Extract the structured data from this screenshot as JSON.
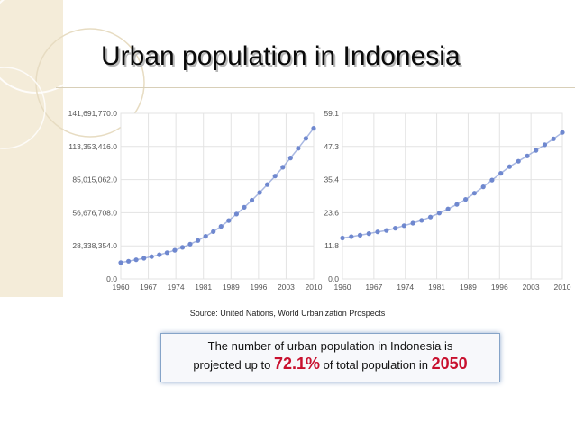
{
  "title": "Urban population in Indonesia",
  "source": "Source: United Nations, World Urbanization Prospects",
  "note": {
    "line1": "The number of urban population in Indonesia is",
    "line2_before": "projected up to",
    "percent": "72.1%",
    "line2_middle": "of total population in",
    "year": "2050",
    "accent_color": "#c8102e"
  },
  "colors": {
    "series": "#6f88cf",
    "grid": "#e3e3e3",
    "band": "#f4ecd9"
  },
  "chart_data": [
    {
      "type": "scatter",
      "title": "",
      "xlabel": "",
      "ylabel": "",
      "x_ticks": [
        "1960",
        "1967",
        "1974",
        "1981",
        "1989",
        "1996",
        "2003",
        "2010"
      ],
      "y_ticks": [
        "0.0",
        "28,338,354.0",
        "56,676,708.0",
        "85,015,062.0",
        "113,353,416.0",
        "141,691,770.0"
      ],
      "xlim": [
        1960,
        2010
      ],
      "ylim": [
        0,
        141691770
      ],
      "grid": true,
      "series": [
        {
          "x": [
            1960,
            1962,
            1964,
            1966,
            1968,
            1970,
            1972,
            1974,
            1976,
            1978,
            1980,
            1982,
            1984,
            1986,
            1988,
            1990,
            1992,
            1994,
            1996,
            1998,
            2000,
            2002,
            2004,
            2006,
            2008,
            2010
          ],
          "values": [
            14000000,
            15200000,
            16400000,
            17700000,
            19100000,
            20700000,
            22500000,
            24600000,
            27000000,
            29800000,
            32900000,
            36500000,
            40500000,
            45000000,
            50000000,
            55500000,
            61300000,
            67400000,
            73900000,
            80800000,
            88000000,
            95600000,
            103500000,
            111800000,
            120300000,
            128900000
          ]
        }
      ]
    },
    {
      "type": "scatter",
      "title": "",
      "xlabel": "",
      "ylabel": "",
      "x_ticks": [
        "1960",
        "1967",
        "1974",
        "1981",
        "1989",
        "1996",
        "2003",
        "2010"
      ],
      "y_ticks": [
        "0.0",
        "11.8",
        "23.6",
        "35.4",
        "47.3",
        "59.1"
      ],
      "xlim": [
        1960,
        2010
      ],
      "ylim": [
        0,
        59.1
      ],
      "grid": true,
      "series": [
        {
          "x": [
            1960,
            1962,
            1964,
            1966,
            1968,
            1970,
            1972,
            1974,
            1976,
            1978,
            1980,
            1982,
            1984,
            1986,
            1988,
            1990,
            1992,
            1994,
            1996,
            1998,
            2000,
            2002,
            2004,
            2006,
            2008,
            2010
          ],
          "values": [
            14.6,
            15.1,
            15.6,
            16.2,
            16.8,
            17.3,
            18.1,
            19.0,
            19.9,
            20.9,
            22.1,
            23.5,
            25.0,
            26.6,
            28.4,
            30.6,
            32.9,
            35.3,
            37.7,
            40.1,
            42.0,
            43.9,
            45.9,
            47.9,
            50.0,
            52.3
          ]
        }
      ]
    }
  ]
}
